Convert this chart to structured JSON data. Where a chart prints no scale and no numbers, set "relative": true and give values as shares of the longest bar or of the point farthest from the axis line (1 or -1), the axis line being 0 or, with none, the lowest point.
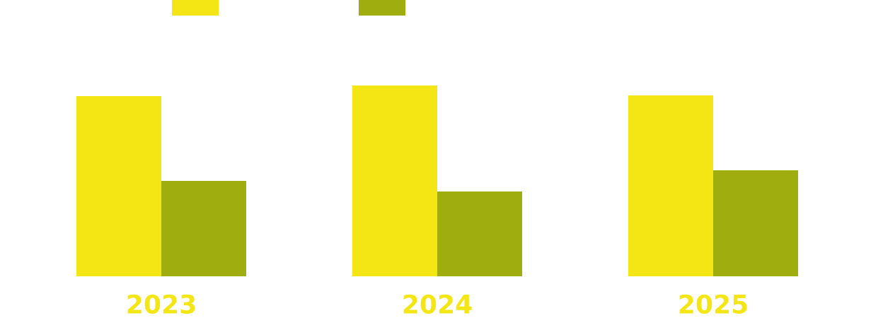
{
  "chart_data": {
    "type": "bar",
    "relative": true,
    "categories": [
      "2023",
      "2024",
      "2025"
    ],
    "series": [
      {
        "color": "#f4e614",
        "values": [
          0.944,
          1,
          0.948
        ]
      },
      {
        "color": "#9fad0f",
        "values": [
          0.5,
          0.444,
          0.556
        ]
      }
    ],
    "grid": false
  }
}
